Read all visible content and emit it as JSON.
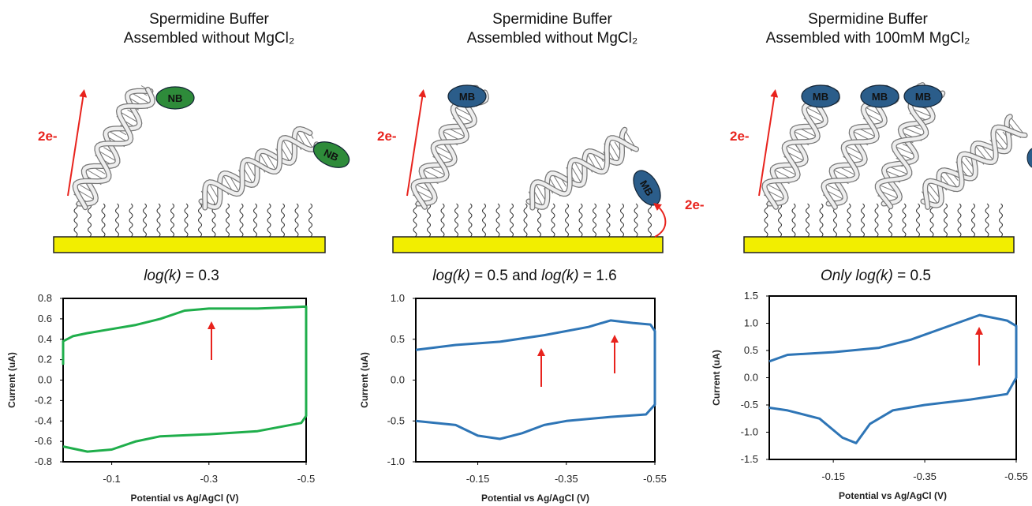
{
  "chart_data": [
    {
      "type": "line",
      "title": [
        "Spermidine Buffer",
        "Assembled without MgCl₂"
      ],
      "caption": [
        {
          "text": "log(k)",
          "italic": true
        },
        {
          "text": " = 0.3"
        }
      ],
      "diagram": {
        "labels": [
          "2e-",
          "NB",
          "NB"
        ]
      },
      "x_label": "Potential vs Ag/AgCl (V)",
      "y_label": "Current (uA)",
      "xlim": [
        0,
        -0.5
      ],
      "xticks": [
        -0.1,
        -0.3,
        -0.5
      ],
      "ylim": [
        -0.8,
        0.8
      ],
      "yticks": [
        0.8,
        0.6,
        0.4,
        0.2,
        {
          "value": 0,
          "label": "0.0"
        },
        -0.2,
        -0.4,
        -0.6,
        -0.8
      ],
      "series": [
        {
          "color": "#1fae4b",
          "x": [
            0,
            0,
            -0.02,
            -0.05,
            -0.1,
            -0.15,
            -0.2,
            -0.25,
            -0.3,
            -0.4,
            -0.5,
            -0.5,
            -0.5,
            -0.49,
            -0.4,
            -0.3,
            -0.2,
            -0.15,
            -0.1,
            -0.05,
            0
          ],
          "values": [
            0.15,
            0.38,
            0.43,
            0.46,
            0.5,
            0.54,
            0.6,
            0.68,
            0.7,
            0.7,
            0.72,
            0.2,
            -0.35,
            -0.42,
            -0.5,
            -0.53,
            -0.55,
            -0.6,
            -0.68,
            -0.7,
            -0.65
          ]
        }
      ]
    },
    {
      "type": "line",
      "title": [
        "Spermidine Buffer",
        "Assembled without MgCl₂"
      ],
      "caption": [
        {
          "text": "log(k)",
          "italic": true
        },
        {
          "text": " = 0.5 and "
        },
        {
          "text": "log(k)",
          "italic": true
        },
        {
          "text": " = 1.6"
        }
      ],
      "diagram": {
        "labels": [
          "2e-",
          "MB",
          "MB",
          "2e-"
        ]
      },
      "x_label": "Potential vs Ag/AgCl (V)",
      "y_label": "Current (uA)",
      "xlim": [
        -0.01,
        -0.55
      ],
      "xticks": [
        -0.15,
        -0.35,
        -0.55
      ],
      "ylim": [
        -1,
        1
      ],
      "yticks": [
        {
          "value": 1,
          "label": "1.0"
        },
        0.5,
        {
          "value": 0,
          "label": "0.0"
        },
        -0.5,
        {
          "value": -1,
          "label": "-1.0"
        }
      ],
      "series": [
        {
          "color": "#2e75b6",
          "x": [
            -0.01,
            -0.1,
            -0.2,
            -0.3,
            -0.4,
            -0.45,
            -0.5,
            -0.54,
            -0.55,
            -0.55,
            -0.53,
            -0.45,
            -0.35,
            -0.3,
            -0.25,
            -0.2,
            -0.15,
            -0.1,
            -0.01
          ],
          "values": [
            0.37,
            0.43,
            0.47,
            0.55,
            0.65,
            0.73,
            0.7,
            0.68,
            0.6,
            -0.3,
            -0.42,
            -0.45,
            -0.5,
            -0.55,
            -0.65,
            -0.72,
            -0.68,
            -0.55,
            -0.5
          ]
        }
      ]
    },
    {
      "type": "line",
      "title": [
        "Spermidine Buffer",
        "Assembled with 100mM MgCl₂"
      ],
      "caption": [
        {
          "text": "Only ",
          "italic": true
        },
        {
          "text": "log(k)",
          "italic": true
        },
        {
          "text": " = 0.5"
        }
      ],
      "diagram": {
        "labels": [
          "2e-",
          "MB",
          "MB",
          "MB"
        ]
      },
      "x_label": "Potential vs Ag/AgCl (V)",
      "y_label": "Current (uA)",
      "xlim": [
        -0.01,
        -0.55
      ],
      "xticks": [
        -0.15,
        -0.35,
        -0.55
      ],
      "ylim": [
        -1.5,
        1.5
      ],
      "yticks": [
        1.5,
        {
          "value": 1,
          "label": "1.0"
        },
        0.5,
        {
          "value": 0,
          "label": "0.0"
        },
        -0.5,
        {
          "value": -1,
          "label": "-1.0"
        },
        -1.5
      ],
      "series": [
        {
          "color": "#2e75b6",
          "x": [
            -0.01,
            -0.05,
            -0.15,
            -0.25,
            -0.32,
            -0.42,
            -0.47,
            -0.53,
            -0.55,
            -0.55,
            -0.53,
            -0.45,
            -0.35,
            -0.28,
            -0.23,
            -0.2,
            -0.17,
            -0.12,
            -0.05,
            -0.01
          ],
          "values": [
            0.3,
            0.42,
            0.47,
            0.55,
            0.7,
            1.0,
            1.15,
            1.05,
            0.95,
            0,
            -0.3,
            -0.4,
            -0.5,
            -0.6,
            -0.85,
            -1.2,
            -1.1,
            -0.75,
            -0.6,
            -0.55
          ]
        }
      ]
    }
  ]
}
